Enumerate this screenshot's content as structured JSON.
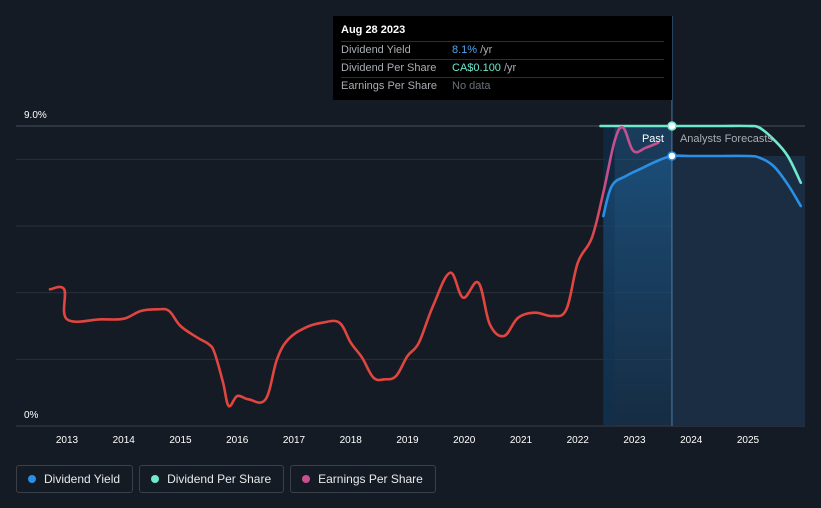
{
  "chart_data": {
    "type": "line",
    "title": "",
    "x_ticks": [
      2013,
      2014,
      2015,
      2016,
      2017,
      2018,
      2019,
      2020,
      2021,
      2022,
      2023,
      2024,
      2025
    ],
    "y_tick_labels": [
      "0%",
      "9.0%"
    ],
    "ylim": [
      0,
      9.0
    ],
    "xlim": [
      2012.0,
      2026.0
    ],
    "past_label": "Past",
    "forecast_label": "Analysts Forecasts",
    "forecast_start": 2022.65,
    "cursor_x": 2023.66,
    "series": [
      {
        "name": "Dividend Yield",
        "color": "#2a8fe5",
        "points": [
          [
            2022.45,
            6.3
          ],
          [
            2022.6,
            7.2
          ],
          [
            2022.85,
            7.5
          ],
          [
            2023.15,
            7.75
          ],
          [
            2023.4,
            7.95
          ],
          [
            2023.66,
            8.1
          ],
          [
            2024.0,
            8.1
          ],
          [
            2024.5,
            8.1
          ],
          [
            2025.0,
            8.1
          ],
          [
            2025.2,
            8.05
          ],
          [
            2025.45,
            7.8
          ],
          [
            2025.7,
            7.25
          ],
          [
            2025.93,
            6.6
          ]
        ]
      },
      {
        "name": "Dividend Per Share",
        "color": "#6ee8cf",
        "points": [
          [
            2022.4,
            9.0
          ],
          [
            2023.0,
            9.0
          ],
          [
            2023.66,
            9.0
          ],
          [
            2024.5,
            9.0
          ],
          [
            2025.0,
            9.0
          ],
          [
            2025.2,
            8.95
          ],
          [
            2025.45,
            8.6
          ],
          [
            2025.7,
            8.1
          ],
          [
            2025.93,
            7.3
          ]
        ]
      },
      {
        "name": "Earnings Per Share",
        "color": "#d94a75",
        "points": [
          [
            2012.7,
            4.1
          ],
          [
            2012.95,
            4.1
          ],
          [
            2013.0,
            3.2
          ],
          [
            2013.6,
            3.2
          ],
          [
            2014.0,
            3.22
          ],
          [
            2014.3,
            3.45
          ],
          [
            2014.6,
            3.5
          ],
          [
            2014.8,
            3.45
          ],
          [
            2015.0,
            3.0
          ],
          [
            2015.3,
            2.65
          ],
          [
            2015.5,
            2.45
          ],
          [
            2015.6,
            2.2
          ],
          [
            2015.75,
            1.3
          ],
          [
            2015.85,
            0.6
          ],
          [
            2016.0,
            0.9
          ],
          [
            2016.2,
            0.8
          ],
          [
            2016.5,
            0.8
          ],
          [
            2016.7,
            2.0
          ],
          [
            2016.9,
            2.6
          ],
          [
            2017.2,
            2.95
          ],
          [
            2017.5,
            3.1
          ],
          [
            2017.8,
            3.1
          ],
          [
            2018.0,
            2.5
          ],
          [
            2018.2,
            2.05
          ],
          [
            2018.4,
            1.45
          ],
          [
            2018.6,
            1.4
          ],
          [
            2018.8,
            1.5
          ],
          [
            2019.0,
            2.1
          ],
          [
            2019.2,
            2.5
          ],
          [
            2019.45,
            3.6
          ],
          [
            2019.75,
            4.6
          ],
          [
            2019.98,
            3.85
          ],
          [
            2020.25,
            4.3
          ],
          [
            2020.45,
            3.05
          ],
          [
            2020.7,
            2.7
          ],
          [
            2020.95,
            3.25
          ],
          [
            2021.25,
            3.4
          ],
          [
            2021.55,
            3.3
          ],
          [
            2021.8,
            3.5
          ],
          [
            2022.0,
            4.9
          ],
          [
            2022.25,
            5.65
          ],
          [
            2022.45,
            7.0
          ],
          [
            2022.65,
            8.55
          ],
          [
            2022.8,
            8.95
          ],
          [
            2022.98,
            8.25
          ],
          [
            2023.2,
            8.35
          ],
          [
            2023.42,
            8.5
          ]
        ]
      }
    ]
  },
  "tooltip": {
    "date": "Aug 28 2023",
    "rows": [
      {
        "label": "Dividend Yield",
        "value": "8.1%",
        "unit": "/yr"
      },
      {
        "label": "Dividend Per Share",
        "value": "CA$0.100",
        "unit": "/yr"
      },
      {
        "label": "Earnings Per Share",
        "value": "No data",
        "unit": ""
      }
    ]
  },
  "legend": {
    "items": [
      {
        "label": "Dividend Yield",
        "color": "#2a8fe5"
      },
      {
        "label": "Dividend Per Share",
        "color": "#6ee8cf"
      },
      {
        "label": "Earnings Per Share",
        "color": "#c9508e"
      }
    ]
  }
}
